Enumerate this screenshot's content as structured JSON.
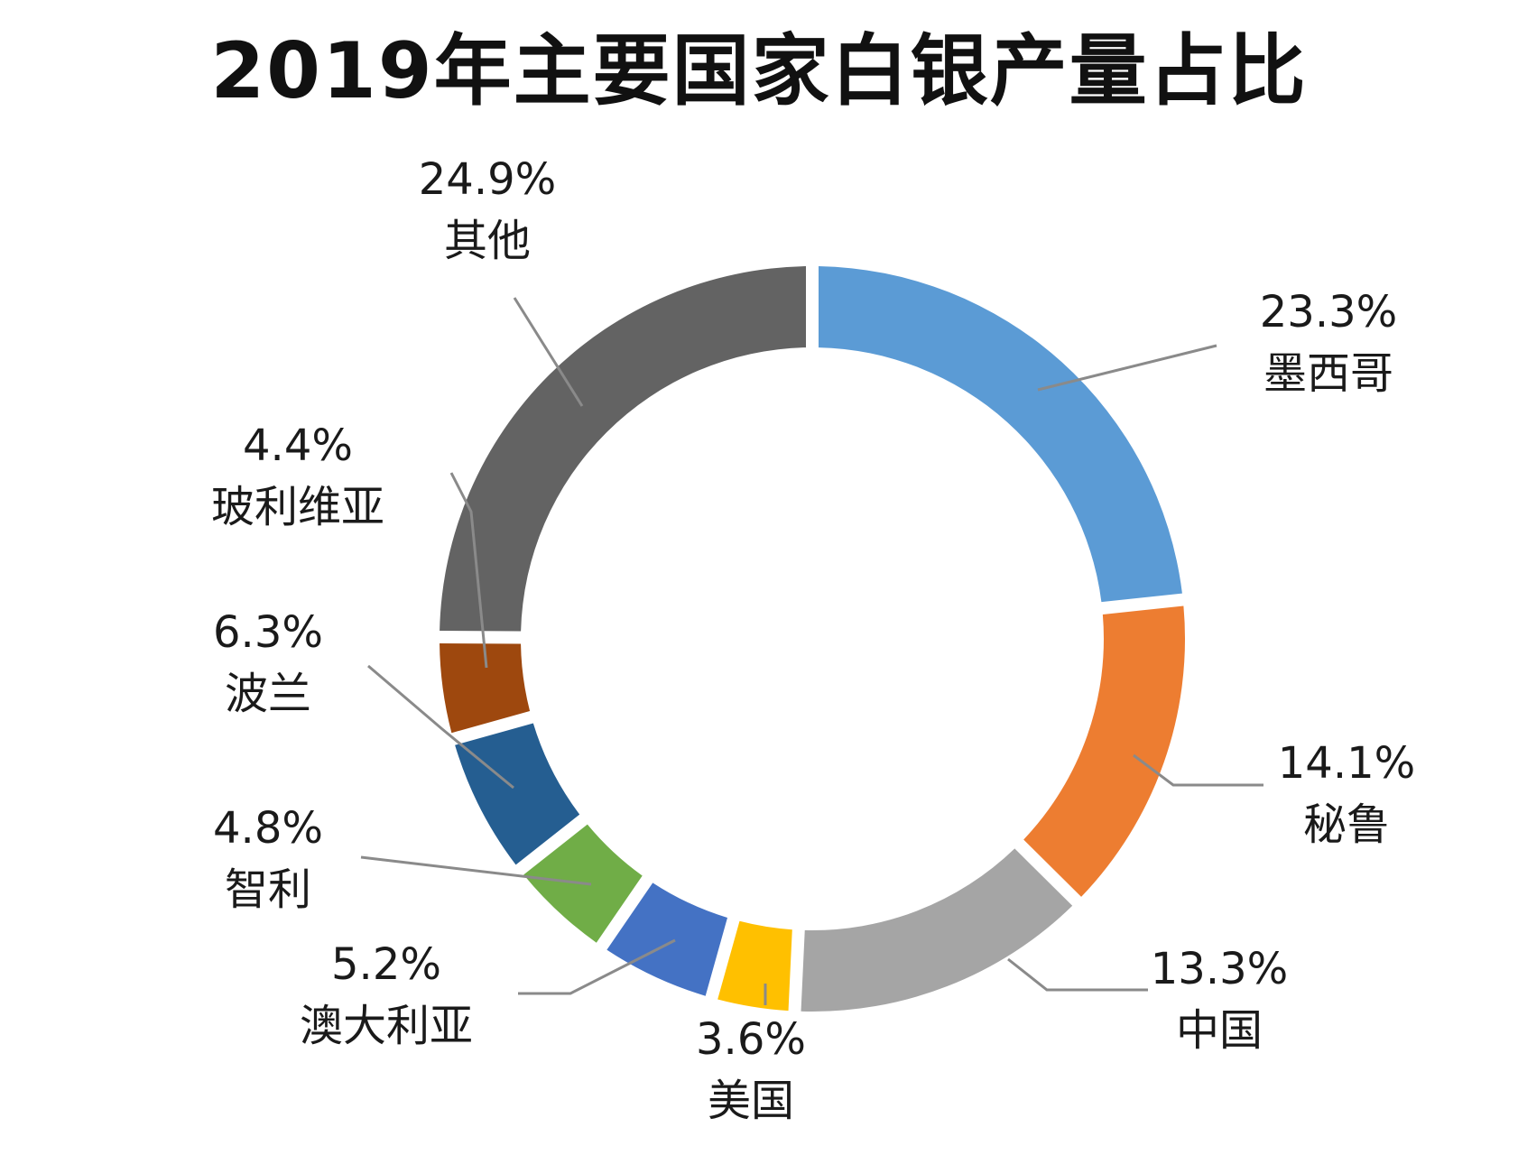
{
  "chart_data": {
    "type": "pie",
    "title": "2019年主要国家白银产量占比",
    "donut": true,
    "slices": [
      {
        "label": "墨西哥",
        "value": 23.3,
        "value_label": "23.3%",
        "color": "#5B9BD5"
      },
      {
        "label": "秘鲁",
        "value": 14.1,
        "value_label": "14.1%",
        "color": "#ED7D31"
      },
      {
        "label": "中国",
        "value": 13.3,
        "value_label": "13.3%",
        "color": "#A5A5A5"
      },
      {
        "label": "美国",
        "value": 3.6,
        "value_label": "3.6%",
        "color": "#FFC000"
      },
      {
        "label": "澳大利亚",
        "value": 5.2,
        "value_label": "5.2%",
        "color": "#4472C4"
      },
      {
        "label": "智利",
        "value": 4.8,
        "value_label": "4.8%",
        "color": "#70AD47"
      },
      {
        "label": "波兰",
        "value": 6.3,
        "value_label": "6.3%",
        "color": "#255E91"
      },
      {
        "label": "玻利维亚",
        "value": 4.4,
        "value_label": "4.4%",
        "color": "#9E480E"
      },
      {
        "label": "其他",
        "value": 24.9,
        "value_label": "24.9%",
        "color": "#636363"
      }
    ]
  }
}
